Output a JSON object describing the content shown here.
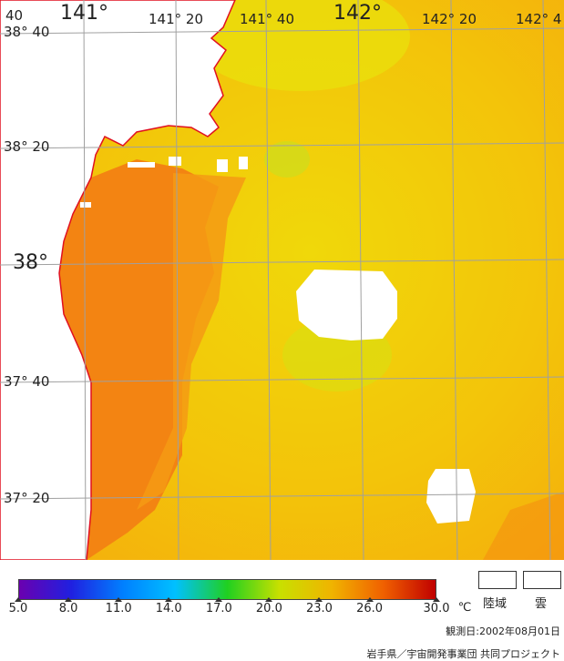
{
  "lon_labels": [
    {
      "text": "141°",
      "size": "big"
    },
    {
      "text": "141° 20",
      "size": "small"
    },
    {
      "text": "141° 40",
      "size": "small"
    },
    {
      "text": "142°",
      "size": "big"
    },
    {
      "text": "142° 20",
      "size": "small"
    },
    {
      "text": "142° 4",
      "size": "small"
    }
  ],
  "lat_labels": [
    {
      "text": "38° 40",
      "size": "small"
    },
    {
      "text": "38° 20",
      "size": "small"
    },
    {
      "text": "38°",
      "size": "big"
    },
    {
      "text": "37° 40",
      "size": "small"
    },
    {
      "text": "37° 20",
      "size": "small"
    }
  ],
  "corner_label": "40",
  "colorbar": {
    "unit": "℃",
    "ticks": [
      "5.0",
      "8.0",
      "11.0",
      "14.0",
      "17.0",
      "20.0",
      "23.0",
      "26.0",
      "30.0"
    ],
    "colors": [
      "#6a00b0",
      "#2020e0",
      "#0080ff",
      "#00c0ff",
      "#20d020",
      "#c8e000",
      "#f0b400",
      "#f06000",
      "#c00000"
    ]
  },
  "key": {
    "land": "陸域",
    "cloud": "雲"
  },
  "observation_date": "観測日:2002年08月01日",
  "credit": "岩手県／宇宙開発事業団 共同プロジェクト"
}
